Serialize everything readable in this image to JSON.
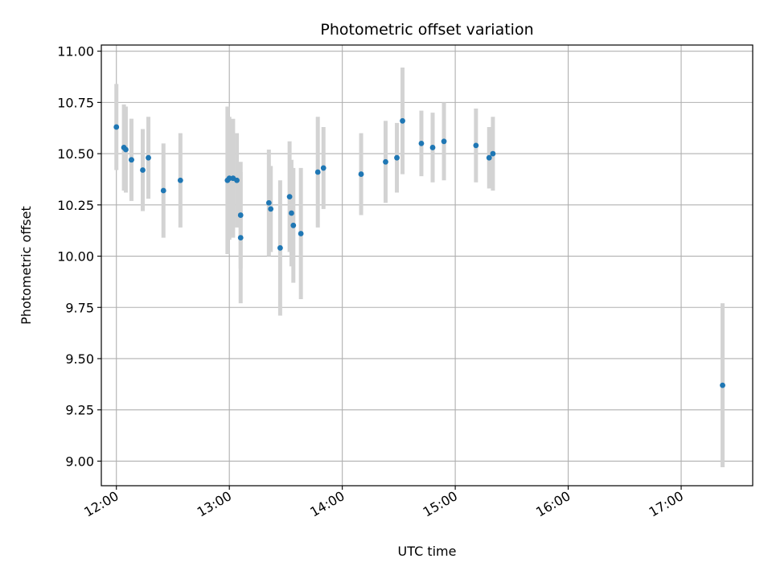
{
  "chart_data": {
    "type": "scatter",
    "title": "Photometric offset variation",
    "xlabel": "UTC time",
    "ylabel": "Photometric offset",
    "xlim": [
      "11:52",
      "17:38"
    ],
    "ylim": [
      8.88,
      11.03
    ],
    "x_ticks": [
      "12:00",
      "13:00",
      "14:00",
      "15:00",
      "16:00",
      "17:00"
    ],
    "y_ticks": [
      "9.00",
      "9.25",
      "9.50",
      "9.75",
      "10.00",
      "10.25",
      "10.50",
      "10.75",
      "11.00"
    ],
    "grid": true,
    "point_color": "#1f77b4",
    "errorbar_color": "#d3d3d3",
    "points": [
      {
        "x": "12:00",
        "y": 10.63,
        "err": 0.21
      },
      {
        "x": "12:04",
        "y": 10.53,
        "err": 0.21
      },
      {
        "x": "12:05",
        "y": 10.52,
        "err": 0.21
      },
      {
        "x": "12:08",
        "y": 10.47,
        "err": 0.2
      },
      {
        "x": "12:08",
        "y": 10.47,
        "err": 0.2
      },
      {
        "x": "12:14",
        "y": 10.42,
        "err": 0.2
      },
      {
        "x": "12:17",
        "y": 10.48,
        "err": 0.2
      },
      {
        "x": "12:25",
        "y": 10.32,
        "err": 0.23
      },
      {
        "x": "12:34",
        "y": 10.37,
        "err": 0.23
      },
      {
        "x": "12:59",
        "y": 10.37,
        "err": 0.36
      },
      {
        "x": "13:00",
        "y": 10.38,
        "err": 0.3
      },
      {
        "x": "13:02",
        "y": 10.38,
        "err": 0.29
      },
      {
        "x": "13:04",
        "y": 10.37,
        "err": 0.23
      },
      {
        "x": "13:06",
        "y": 10.2,
        "err": 0.26
      },
      {
        "x": "13:06",
        "y": 10.09,
        "err": 0.32
      },
      {
        "x": "13:21",
        "y": 10.26,
        "err": 0.26
      },
      {
        "x": "13:22",
        "y": 10.23,
        "err": 0.21
      },
      {
        "x": "13:27",
        "y": 10.04,
        "err": 0.33
      },
      {
        "x": "13:32",
        "y": 10.29,
        "err": 0.27
      },
      {
        "x": "13:33",
        "y": 10.21,
        "err": 0.26
      },
      {
        "x": "13:34",
        "y": 10.15,
        "err": 0.28
      },
      {
        "x": "13:38",
        "y": 10.11,
        "err": 0.32
      },
      {
        "x": "13:47",
        "y": 10.41,
        "err": 0.27
      },
      {
        "x": "13:50",
        "y": 10.43,
        "err": 0.2
      },
      {
        "x": "14:10",
        "y": 10.4,
        "err": 0.2
      },
      {
        "x": "14:23",
        "y": 10.46,
        "err": 0.2
      },
      {
        "x": "14:29",
        "y": 10.48,
        "err": 0.17
      },
      {
        "x": "14:32",
        "y": 10.66,
        "err": 0.26
      },
      {
        "x": "14:42",
        "y": 10.55,
        "err": 0.16
      },
      {
        "x": "14:48",
        "y": 10.53,
        "err": 0.17
      },
      {
        "x": "14:54",
        "y": 10.56,
        "err": 0.19
      },
      {
        "x": "15:11",
        "y": 10.54,
        "err": 0.18
      },
      {
        "x": "15:18",
        "y": 10.48,
        "err": 0.15
      },
      {
        "x": "15:20",
        "y": 10.5,
        "err": 0.18
      },
      {
        "x": "17:22",
        "y": 9.37,
        "err": 0.4
      }
    ]
  }
}
